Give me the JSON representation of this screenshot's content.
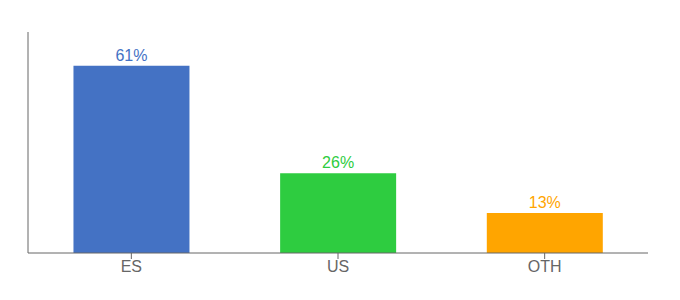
{
  "chart_data": {
    "type": "bar",
    "categories": [
      "ES",
      "US",
      "OTH"
    ],
    "values": [
      61,
      26,
      13
    ],
    "colors": [
      "#4472C4",
      "#2ECC40",
      "#FFA500"
    ],
    "ylim": [
      0,
      72
    ],
    "data_labels": true,
    "value_labels": [
      "61%",
      "26%",
      "13%"
    ],
    "grid": false,
    "tick_labels": "x"
  }
}
